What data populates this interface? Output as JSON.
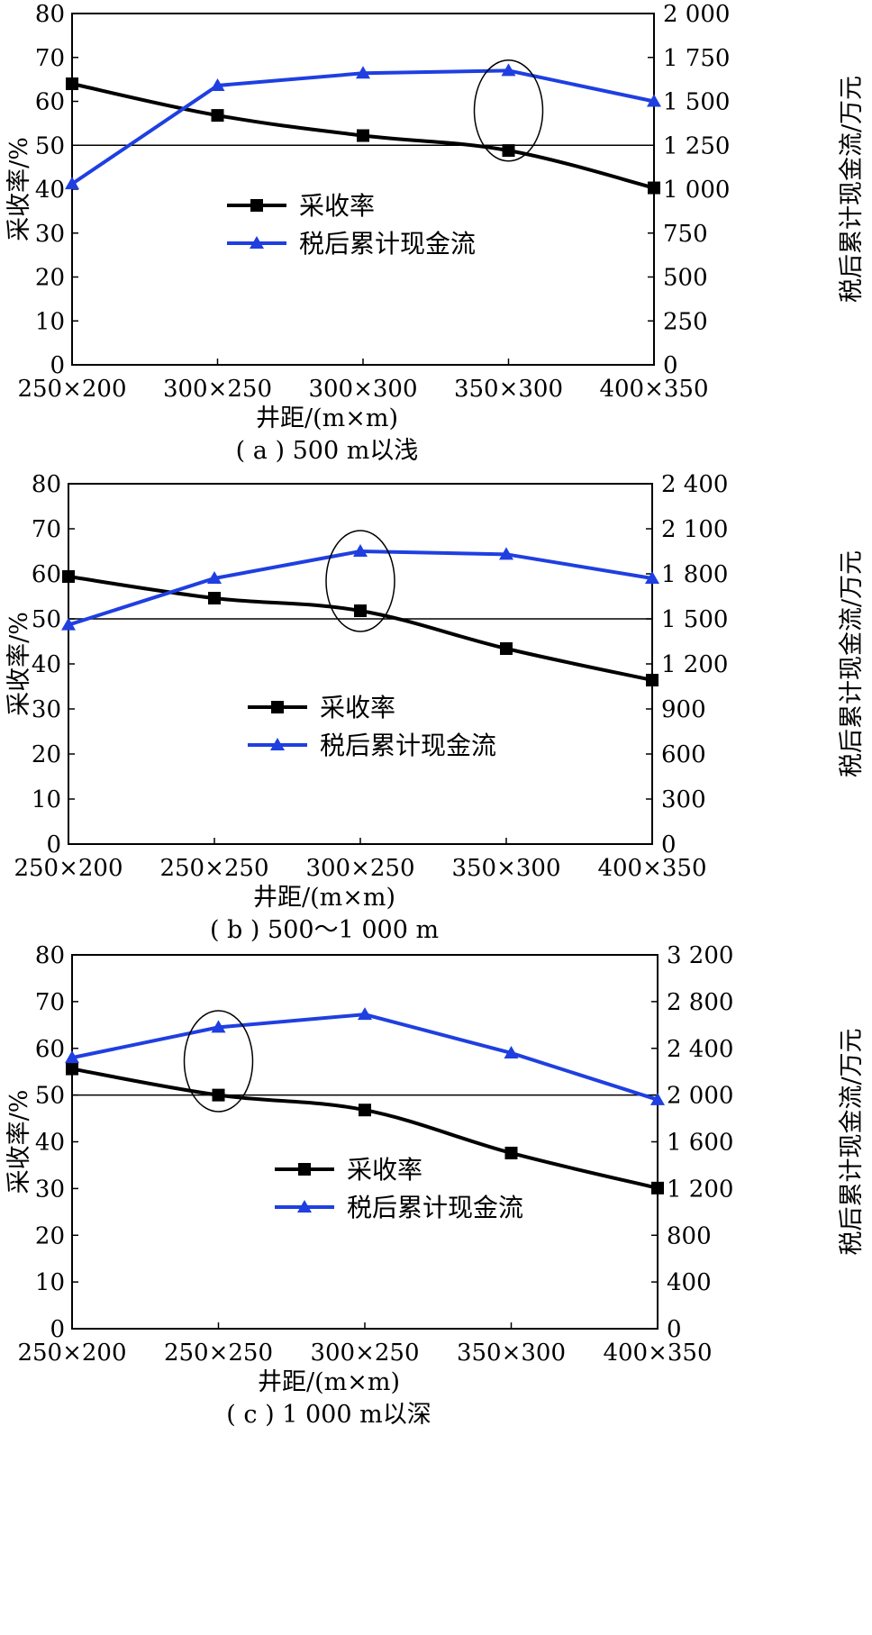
{
  "chart_data": [
    {
      "type": "line",
      "caption": "( a ) 500 m以浅",
      "xlabel": "井距/(m×m)",
      "ylabel_left": "采收率/%",
      "ylabel_right": "税后累计现金流/万元",
      "categories": [
        "250×200",
        "300×250",
        "300×300",
        "350×300",
        "400×350"
      ],
      "ylim_left": [
        0,
        80
      ],
      "yticks_left": [
        "0",
        "10",
        "20",
        "30",
        "40",
        "50",
        "60",
        "70",
        "80"
      ],
      "ylim_right": [
        0,
        2000
      ],
      "yticks_right": [
        "0",
        "250",
        "500",
        "750",
        "1 000",
        "1 250",
        "1 500",
        "1 750",
        "2 000"
      ],
      "reference_line_left": 50,
      "highlight_index": 3,
      "series": [
        {
          "name": "采收率",
          "axis": "left",
          "marker": "square",
          "color": "#000000",
          "values": [
            64,
            56.8,
            52.2,
            48.8,
            40.3
          ]
        },
        {
          "name": "税后累计现金流",
          "axis": "right",
          "marker": "triangle",
          "color": "#1f3fe0",
          "values": [
            1030,
            1590,
            1660,
            1675,
            1500
          ]
        }
      ],
      "legend_placement": "center-left"
    },
    {
      "type": "line",
      "caption": "( b ) 500～1 000 m",
      "xlabel": "井距/(m×m)",
      "ylabel_left": "采收率/%",
      "ylabel_right": "税后累计现金流/万元",
      "categories": [
        "250×200",
        "250×250",
        "300×250",
        "350×300",
        "400×350"
      ],
      "ylim_left": [
        0,
        80
      ],
      "yticks_left": [
        "0",
        "10",
        "20",
        "30",
        "40",
        "50",
        "60",
        "70",
        "80"
      ],
      "ylim_right": [
        0,
        2400
      ],
      "yticks_right": [
        "0",
        "300",
        "600",
        "900",
        "1 200",
        "1 500",
        "1 800",
        "2 100",
        "2 400"
      ],
      "reference_line_left": 50,
      "highlight_index": 2,
      "series": [
        {
          "name": "采收率",
          "axis": "left",
          "marker": "square",
          "color": "#000000",
          "values": [
            59.4,
            54.6,
            51.8,
            43.4,
            36.4
          ]
        },
        {
          "name": "税后累计现金流",
          "axis": "right",
          "marker": "triangle",
          "color": "#1f3fe0",
          "values": [
            1460,
            1770,
            1950,
            1930,
            1770
          ]
        }
      ],
      "legend_placement": "center-left"
    },
    {
      "type": "line",
      "caption": "( c ) 1 000 m以深",
      "xlabel": "井距/(m×m)",
      "ylabel_left": "采收率/%",
      "ylabel_right": "税后累计现金流/万元",
      "categories": [
        "250×200",
        "250×250",
        "300×250",
        "350×300",
        "400×350"
      ],
      "ylim_left": [
        0,
        80
      ],
      "yticks_left": [
        "0",
        "10",
        "20",
        "30",
        "40",
        "50",
        "60",
        "70",
        "80"
      ],
      "ylim_right": [
        0,
        3200
      ],
      "yticks_right": [
        "0",
        "400",
        "800",
        "1 200",
        "1 600",
        "2 000",
        "2 400",
        "2 800",
        "3 200"
      ],
      "reference_line_left": 50,
      "highlight_index": 1,
      "series": [
        {
          "name": "采收率",
          "axis": "left",
          "marker": "square",
          "color": "#000000",
          "values": [
            55.6,
            50,
            46.8,
            37.6,
            30.1
          ]
        },
        {
          "name": "税后累计现金流",
          "axis": "right",
          "marker": "triangle",
          "color": "#1f3fe0",
          "values": [
            2320,
            2580,
            2690,
            2360,
            1960
          ]
        }
      ],
      "legend_placement": "center-left"
    }
  ]
}
